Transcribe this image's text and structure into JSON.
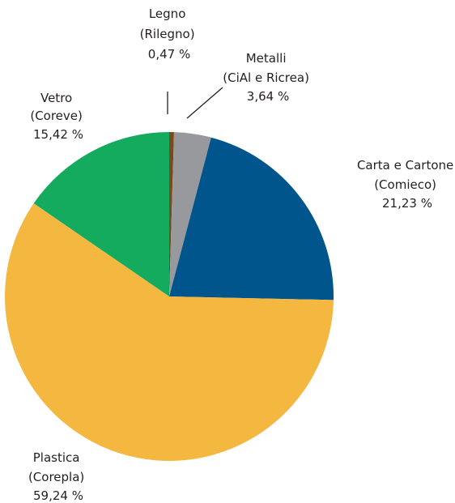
{
  "chart_data": {
    "type": "pie",
    "title": "",
    "slices": [
      {
        "name": "Legno",
        "sub": "(Rilegno)",
        "value": 0.47,
        "value_label": "0,47 %",
        "color": "#7a4a1e"
      },
      {
        "name": "Metalli",
        "sub": "(CiAl e Ricrea)",
        "value": 3.64,
        "value_label": "3,64 %",
        "color": "#97999c"
      },
      {
        "name": "Carta e Cartone",
        "sub": "(Comieco)",
        "value": 21.23,
        "value_label": "21,23 %",
        "color": "#00558c"
      },
      {
        "name": "Plastica",
        "sub": "(Corepla)",
        "value": 59.24,
        "value_label": "59,24 %",
        "color": "#f4b841"
      },
      {
        "name": "Vetro",
        "sub": "(Coreve)",
        "value": 15.42,
        "value_label": "15,42 %",
        "color": "#15ab5f"
      }
    ],
    "start": "top, clockwise",
    "leader_lines": [
      "Legno",
      "Metalli"
    ]
  }
}
